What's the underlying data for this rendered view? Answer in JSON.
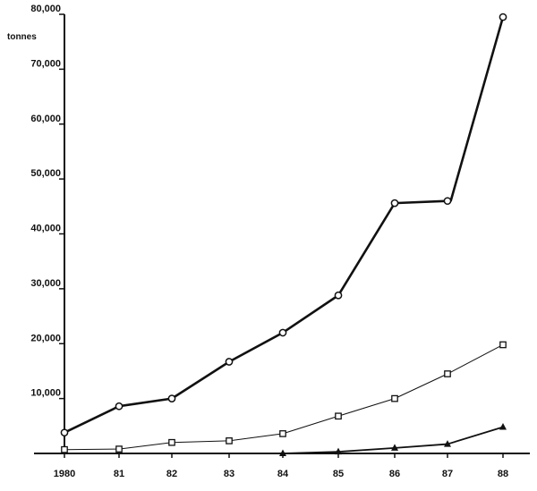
{
  "chart_data": {
    "type": "line",
    "title": "",
    "xlabel": "",
    "ylabel": "tonnes",
    "ylim": [
      0,
      80000
    ],
    "x": [
      "1980",
      "81",
      "82",
      "83",
      "84",
      "85",
      "86",
      "87",
      "88"
    ],
    "x_tick_labels": [
      "1980",
      "81",
      "82",
      "83",
      "84",
      "85",
      "86",
      "87",
      "88"
    ],
    "y_ticks": [
      10000,
      20000,
      30000,
      40000,
      50000,
      60000,
      70000,
      80000
    ],
    "y_tick_labels": [
      "10,000",
      "20,000",
      "30,000",
      "40,000",
      "50,000",
      "60,000",
      "70,000",
      "80,000"
    ],
    "grid": false,
    "legend": "none",
    "series": [
      {
        "marker": "circle",
        "line_style": "solid-thick",
        "values": [
          3800,
          8600,
          10000,
          16700,
          22000,
          28800,
          45600,
          46000,
          79500
        ],
        "gap_after_index": 7
      },
      {
        "marker": "square",
        "line_style": "solid-thin",
        "values": [
          700,
          800,
          2000,
          2300,
          3600,
          6800,
          10000,
          14500,
          19800
        ]
      },
      {
        "marker": "triangle",
        "line_style": "solid-medium",
        "start_index": 4,
        "values": [
          null,
          null,
          null,
          null,
          0,
          300,
          1000,
          1700,
          4800
        ]
      }
    ]
  }
}
